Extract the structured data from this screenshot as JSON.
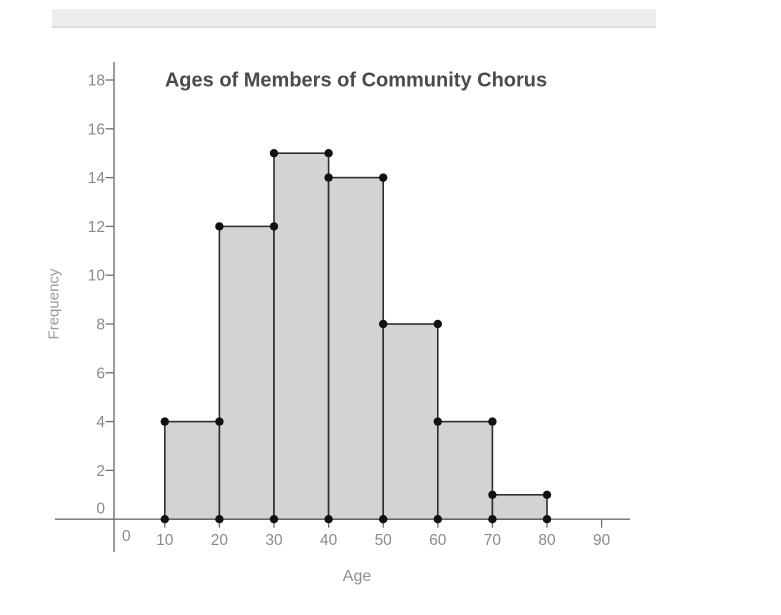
{
  "chart_data": {
    "type": "histogram",
    "title": "Ages of Members of Community Chorus",
    "xlabel": "Age",
    "ylabel": "Frequency",
    "bin_edges": [
      10,
      20,
      30,
      40,
      50,
      60,
      70,
      80
    ],
    "frequencies": [
      4,
      12,
      15,
      14,
      8,
      4,
      1
    ],
    "x_ticks": [
      0,
      10,
      20,
      30,
      40,
      50,
      60,
      70,
      80,
      90
    ],
    "y_ticks": [
      0,
      2,
      4,
      6,
      8,
      10,
      12,
      14,
      16,
      18
    ],
    "xlim": [
      0,
      95
    ],
    "ylim": [
      0,
      18
    ],
    "grid": false,
    "legend": "none",
    "point_markers_at_bar_corners": true,
    "colors": {
      "bar_fill": "#d3d3d3",
      "bar_stroke": "#2e2e2e",
      "dot": "#111111",
      "axis": "#6e6e6e",
      "tick_label": "#8a8a8a",
      "title": "#4b4b4b"
    }
  }
}
